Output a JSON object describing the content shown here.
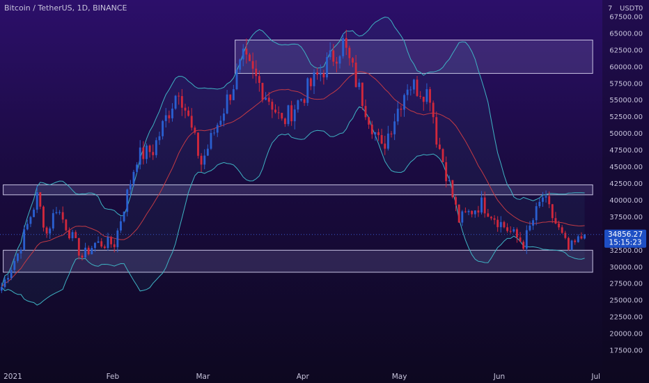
{
  "header": {
    "symbol_title": "Bitcoin / TetherUS, 1D, BINANCE"
  },
  "price_axis": {
    "currency": "USDT",
    "top_marker": "7",
    "top_suffix": "0",
    "tick_labels": [
      "67500.00",
      "65000.00",
      "62500.00",
      "60000.00",
      "57500.00",
      "55000.00",
      "52500.00",
      "50000.00",
      "47500.00",
      "45000.00",
      "42500.00",
      "40000.00",
      "37500.00",
      "35000.00",
      "32500.00",
      "30000.00",
      "27500.00",
      "25000.00",
      "22500.00",
      "20000.00",
      "17500.00"
    ],
    "last_price_label": "34856.27",
    "countdown_label": "15:15:23"
  },
  "time_axis": {
    "labels": [
      "2021",
      "Feb",
      "Mar",
      "Apr",
      "May",
      "Jun",
      "Jul"
    ]
  },
  "colors": {
    "bg_top": "#2c0f6a",
    "bg_bottom": "#0d0820",
    "up": "#2a5fd0",
    "down": "#d0283c",
    "band": "#3fb3c4",
    "basis": "#c33a45",
    "zone_fill": "#8e86c6",
    "zone_stroke": "#c9c4e4",
    "axis_text": "#c8c4dc",
    "price_tag": "#1e4fc4"
  },
  "chart_data": {
    "type": "candlestick",
    "title": "Bitcoin / TetherUS, 1D, BINANCE",
    "ylim": [
      15000,
      70000
    ],
    "x_range": [
      "2020-12-28",
      "2021-07-03"
    ],
    "last_price": 34856.27,
    "close_path": [
      {
        "d": "2020-12-28",
        "v": 27000
      },
      {
        "d": "2021-01-02",
        "v": 32000
      },
      {
        "d": "2021-01-08",
        "v": 40500
      },
      {
        "d": "2021-01-11",
        "v": 35000
      },
      {
        "d": "2021-01-14",
        "v": 39000
      },
      {
        "d": "2021-01-22",
        "v": 31500
      },
      {
        "d": "2021-01-26",
        "v": 33500
      },
      {
        "d": "2021-02-01",
        "v": 33500
      },
      {
        "d": "2021-02-08",
        "v": 46500
      },
      {
        "d": "2021-02-13",
        "v": 47500
      },
      {
        "d": "2021-02-21",
        "v": 57000
      },
      {
        "d": "2021-02-28",
        "v": 45500
      },
      {
        "d": "2021-03-13",
        "v": 61000
      },
      {
        "d": "2021-03-22",
        "v": 54500
      },
      {
        "d": "2021-03-25",
        "v": 51500
      },
      {
        "d": "2021-04-05",
        "v": 58500
      },
      {
        "d": "2021-04-13",
        "v": 63500
      },
      {
        "d": "2021-04-18",
        "v": 56500
      },
      {
        "d": "2021-04-25",
        "v": 47500
      },
      {
        "d": "2021-05-03",
        "v": 57500
      },
      {
        "d": "2021-05-10",
        "v": 56000
      },
      {
        "d": "2021-05-12",
        "v": 49500
      },
      {
        "d": "2021-05-19",
        "v": 37000
      },
      {
        "d": "2021-05-26",
        "v": 39500
      },
      {
        "d": "2021-06-01",
        "v": 36500
      },
      {
        "d": "2021-06-08",
        "v": 33500
      },
      {
        "d": "2021-06-14",
        "v": 40500
      },
      {
        "d": "2021-06-22",
        "v": 32500
      },
      {
        "d": "2021-06-27",
        "v": 34856
      }
    ],
    "zones": [
      {
        "start": "2021-03-11",
        "end": "2021-06-30",
        "low": 59000,
        "high": 64000
      },
      {
        "start": "2020-12-29",
        "end": "2021-06-30",
        "low": 40800,
        "high": 42300
      },
      {
        "start": "2020-12-29",
        "end": "2021-06-30",
        "low": 29200,
        "high": 32500
      }
    ],
    "indicators": [
      "Bollinger Bands upper",
      "Bollinger Bands basis",
      "Bollinger Bands lower"
    ]
  }
}
